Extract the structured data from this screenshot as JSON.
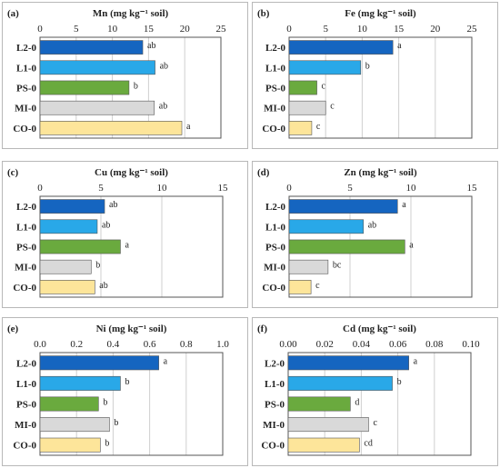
{
  "figure": {
    "colors": {
      "L2-0": "#1565c0",
      "L1-0": "#29a8e8",
      "PS-0": "#6aaa3e",
      "MI-0": "#d9d9d9",
      "CO-0": "#fde59a",
      "panel_border": "#b8b8b8",
      "grid": "#cfcfcf",
      "bar_stroke": "#555555"
    }
  },
  "chart_data": [
    {
      "type": "bar",
      "orientation": "horizontal",
      "panel_label": "(a)",
      "title": "Mn  (mg kg⁻¹ soil)",
      "categories": [
        "L2-0",
        "L1-0",
        "PS-0",
        "MI-0",
        "CO-0"
      ],
      "values": [
        14.2,
        15.9,
        12.3,
        15.8,
        19.6
      ],
      "letters": [
        "ab",
        "ab",
        "b",
        "ab",
        "a"
      ],
      "xlim": [
        0,
        25
      ],
      "ticks": [
        "0",
        "5",
        "10",
        "15",
        "20",
        "25"
      ],
      "tick_values": [
        0,
        5,
        10,
        15,
        20,
        25
      ],
      "axis_top": true,
      "grid": true
    },
    {
      "type": "bar",
      "orientation": "horizontal",
      "panel_label": "(b)",
      "title": "Fe (mg kg⁻¹ soil)",
      "categories": [
        "L2-0",
        "L1-0",
        "PS-0",
        "MI-0",
        "CO-0"
      ],
      "values": [
        14.2,
        9.8,
        3.8,
        5.0,
        3.1
      ],
      "letters": [
        "a",
        "b",
        "c",
        "c",
        "c"
      ],
      "xlim": [
        0,
        25
      ],
      "ticks": [
        "0",
        "5",
        "10",
        "15",
        "20",
        "25"
      ],
      "tick_values": [
        0,
        5,
        10,
        15,
        20,
        25
      ],
      "axis_top": true,
      "grid": true
    },
    {
      "type": "bar",
      "orientation": "horizontal",
      "panel_label": "(c)",
      "title": "Cu (mg kg⁻¹ soil)",
      "categories": [
        "L2-0",
        "L1-0",
        "PS-0",
        "MI-0",
        "CO-0"
      ],
      "values": [
        5.3,
        4.7,
        6.6,
        4.2,
        4.5
      ],
      "letters": [
        "ab",
        "ab",
        "a",
        "b",
        "ab"
      ],
      "xlim": [
        0,
        15
      ],
      "ticks": [
        "0",
        "5",
        "10",
        "15"
      ],
      "tick_values": [
        0,
        5,
        10,
        15
      ],
      "axis_top": true,
      "grid": true
    },
    {
      "type": "bar",
      "orientation": "horizontal",
      "panel_label": "(d)",
      "title": "Zn (mg kg⁻¹ soil)",
      "categories": [
        "L2-0",
        "L1-0",
        "PS-0",
        "MI-0",
        "CO-0"
      ],
      "values": [
        8.9,
        6.1,
        9.5,
        3.2,
        1.8
      ],
      "letters": [
        "a",
        "ab",
        "a",
        "bc",
        "c"
      ],
      "xlim": [
        0,
        15
      ],
      "ticks": [
        "0",
        "5",
        "10",
        "15"
      ],
      "tick_values": [
        0,
        5,
        10,
        15
      ],
      "axis_top": true,
      "grid": true
    },
    {
      "type": "bar",
      "orientation": "horizontal",
      "panel_label": "(e)",
      "title": "Ni (mg kg⁻¹ soil)",
      "categories": [
        "L2-0",
        "L1-0",
        "PS-0",
        "MI-0",
        "CO-0"
      ],
      "values": [
        0.65,
        0.44,
        0.32,
        0.38,
        0.33
      ],
      "letters": [
        "a",
        "b",
        "b",
        "b",
        "b"
      ],
      "xlim": [
        0,
        1.0
      ],
      "ticks": [
        "0.0",
        "0.2",
        "0.4",
        "0.6",
        "0.8",
        "1.0"
      ],
      "tick_values": [
        0,
        0.2,
        0.4,
        0.6,
        0.8,
        1.0
      ],
      "axis_top": true,
      "grid": true
    },
    {
      "type": "bar",
      "orientation": "horizontal",
      "panel_label": "(f)",
      "title": "Cd (mg kg⁻¹ soil)",
      "categories": [
        "L2-0",
        "L1-0",
        "PS-0",
        "MI-0",
        "CO-0"
      ],
      "values": [
        0.066,
        0.057,
        0.034,
        0.044,
        0.039
      ],
      "letters": [
        "a",
        "b",
        "d",
        "c",
        "cd"
      ],
      "xlim": [
        0,
        0.1
      ],
      "ticks": [
        "0.00",
        "0.02",
        "0.04",
        "0.06",
        "0.08",
        "0.10"
      ],
      "tick_values": [
        0,
        0.02,
        0.04,
        0.06,
        0.08,
        0.1
      ],
      "axis_top": true,
      "grid": true
    }
  ]
}
